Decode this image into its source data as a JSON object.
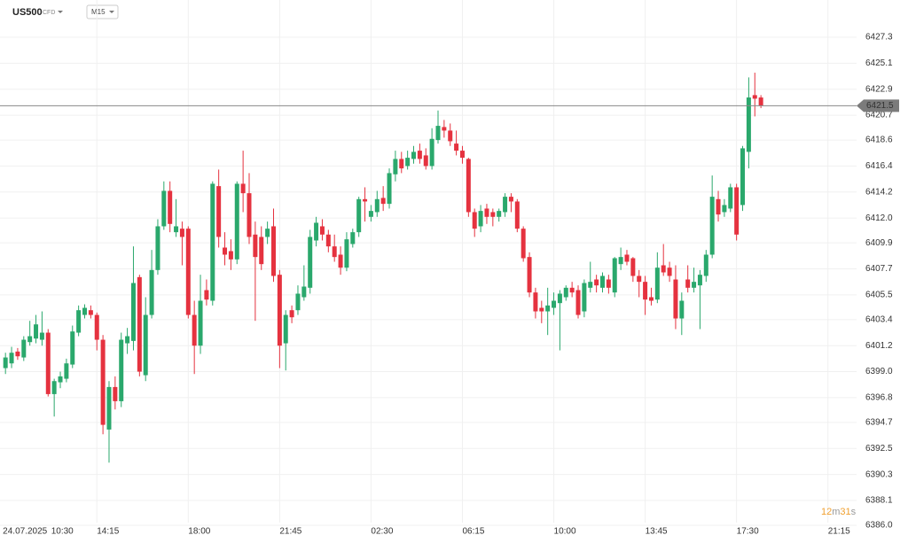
{
  "chart_data": {
    "type": "candlestick",
    "symbol": "US500",
    "instrument": "CFD",
    "timeframe": "M15",
    "countdown": [
      "12",
      "m",
      "31",
      "s"
    ],
    "up_color": "#2aa86c",
    "down_color": "#e5323f",
    "grid": true,
    "last_price": 6421.5,
    "xlim": [
      -0.9,
      139.7
    ],
    "xticks": [
      {
        "value": 0,
        "label": "24.07.2025"
      },
      {
        "value": 7.5,
        "label": "10:30"
      },
      {
        "value": 15,
        "label": "14:15"
      },
      {
        "value": 30,
        "label": "18:00"
      },
      {
        "value": 45,
        "label": "21:45"
      },
      {
        "value": 60,
        "label": "02:30"
      },
      {
        "value": 75,
        "label": "06:15"
      },
      {
        "value": 90,
        "label": "10:00"
      },
      {
        "value": 105,
        "label": "13:45"
      },
      {
        "value": 120,
        "label": "17:30"
      },
      {
        "value": 135,
        "label": "21:15"
      }
    ],
    "ylim": [
      6384.5,
      6430.45
    ],
    "yticks": [
      6427.3,
      6425.1,
      6422.9,
      6420.7,
      6418.6,
      6416.4,
      6414.2,
      {
        "value": 6412,
        "label": "6412.0"
      },
      6409.9,
      6407.7,
      6405.5,
      6403.4,
      6401.2,
      {
        "value": 6399,
        "label": "6399.0"
      },
      6396.8,
      6394.7,
      6392.5,
      6390.3,
      6388.1,
      {
        "value": 6386,
        "label": "6386.0"
      }
    ],
    "open": [
      6399.3,
      6399.7,
      6400.7,
      6400.2,
      6401.5,
      6401.8,
      6401.7,
      6402.3,
      6397.1,
      6398.1,
      6398.4,
      6399.6,
      6402.3,
      6403.8,
      6404.2,
      6403.8,
      6401.7,
      6394.1,
      6397.7,
      6396.5,
      6401.4,
      6401.6,
      6407.0,
      6398.7,
      6403.8,
      6407.6,
      6411.3,
      6414.3,
      6410.8,
      6411.1,
      6411.1,
      6403.8,
      6401.2,
      6405.9,
      6405.0,
      6414.7,
      6409.5,
      6409.2,
      6408.5,
      6414.9,
      6414.1,
      6410.6,
      6410.4,
      6410.4,
      6411.3,
      6407.2,
      6401.4,
      6404.2,
      6404.2,
      6405.3,
      6406.1,
      6410.1,
      6411.3,
      6410.6,
      6409.6,
      6408.9,
      6407.8,
      6409.8,
      6410.8,
      6413.6,
      6412.1,
      6412.5,
      6413.7,
      6413.2,
      6415.7,
      6417.0,
      6416.4,
      6417.0,
      6417.7,
      6417.3,
      6416.4,
      6418.6,
      6419.7,
      6419.4,
      6418.3,
      6417.7,
      6417.0,
      6412.5,
      6411.3,
      6412.8,
      6412.5,
      6412.1,
      6412.5,
      6413.8,
      6413.4,
      6411.1,
      6408.7,
      6405.7,
      6404.4,
      6404.1,
      6404.4,
      6404.8,
      6405.3,
      6406.1,
      6405.9,
      6404.1,
      6406.1,
      6406.8,
      6406.1,
      6406.8,
      6405.7,
      6408.1,
      6408.9,
      6408.6,
      6407.1,
      6406.6,
      6405.3,
      6405.1,
      6408.0,
      6407.8,
      6406.8,
      6403.5,
      6406.8,
      6406.1,
      6406.3,
      6407.1,
      6408.9,
      6413.6,
      6412.5,
      6412.8,
      6414.6,
      6413.1,
      6417.6,
      6422.4,
      6422.2
    ],
    "high": [
      6400.6,
      6401.1,
      6401.0,
      6402.0,
      6403.3,
      6403.8,
      6404.1,
      6402.6,
      6398.4,
      6399.0,
      6400.1,
      6402.9,
      6404.6,
      6404.7,
      6404.6,
      6404.0,
      6402.1,
      6398.2,
      6398.6,
      6402.3,
      6402.7,
      6409.6,
      6407.2,
      6405.3,
      6409.3,
      6411.9,
      6415.1,
      6415.1,
      6413.6,
      6411.7,
      6411.3,
      6405.0,
      6407.2,
      6406.8,
      6415.1,
      6416.1,
      6410.8,
      6410.2,
      6415.1,
      6417.7,
      6415.8,
      6411.7,
      6411.3,
      6411.7,
      6412.8,
      6407.6,
      6404.2,
      6404.6,
      6406.3,
      6408.0,
      6411.0,
      6412.1,
      6411.9,
      6411.0,
      6410.6,
      6409.6,
      6410.8,
      6411.1,
      6413.8,
      6414.6,
      6413.1,
      6414.3,
      6414.7,
      6416.2,
      6417.7,
      6417.6,
      6417.7,
      6418.1,
      6418.3,
      6417.9,
      6419.6,
      6421.1,
      6420.3,
      6420.0,
      6419.4,
      6418.1,
      6417.1,
      6412.8,
      6413.1,
      6413.2,
      6412.8,
      6412.8,
      6414.1,
      6414.1,
      6413.6,
      6411.3,
      6409.1,
      6406.1,
      6405.0,
      6406.1,
      6405.7,
      6405.9,
      6406.3,
      6406.6,
      6406.3,
      6406.8,
      6408.3,
      6407.2,
      6407.4,
      6407.2,
      6408.7,
      6409.5,
      6409.3,
      6408.7,
      6407.6,
      6407.1,
      6406.1,
      6409.1,
      6409.8,
      6408.3,
      6408.0,
      6405.7,
      6408.0,
      6407.8,
      6407.6,
      6409.3,
      6415.6,
      6414.3,
      6413.6,
      6414.9,
      6414.9,
      6418.1,
      6423.9,
      6424.3,
      6422.4
    ],
    "low": [
      6398.8,
      6399.3,
      6400.0,
      6399.9,
      6401.2,
      6401.4,
      6401.2,
      6396.9,
      6395.2,
      6397.6,
      6398.1,
      6399.3,
      6402.0,
      6403.5,
      6403.5,
      6400.8,
      6393.7,
      6391.3,
      6395.8,
      6396.0,
      6400.5,
      6400.8,
      6398.6,
      6398.2,
      6403.5,
      6407.2,
      6411.0,
      6410.8,
      6410.4,
      6408.0,
      6403.5,
      6398.8,
      6400.5,
      6404.6,
      6404.6,
      6409.5,
      6408.0,
      6407.6,
      6408.1,
      6412.5,
      6409.8,
      6403.3,
      6407.6,
      6409.8,
      6406.6,
      6399.3,
      6399.1,
      6403.1,
      6403.8,
      6405.0,
      6405.6,
      6409.6,
      6410.1,
      6409.1,
      6408.3,
      6407.2,
      6407.5,
      6409.5,
      6410.4,
      6411.7,
      6411.7,
      6412.1,
      6412.6,
      6412.8,
      6415.1,
      6415.8,
      6416.1,
      6416.6,
      6416.6,
      6416.1,
      6416.1,
      6418.3,
      6418.8,
      6418.1,
      6417.3,
      6416.6,
      6412.1,
      6410.4,
      6410.8,
      6411.5,
      6411.3,
      6411.7,
      6412.1,
      6412.5,
      6410.8,
      6408.3,
      6405.3,
      6403.5,
      6403.1,
      6402.1,
      6403.8,
      6400.8,
      6405.0,
      6405.3,
      6403.5,
      6403.6,
      6405.7,
      6405.7,
      6405.7,
      6405.6,
      6405.3,
      6407.6,
      6408.0,
      6406.6,
      6405.3,
      6403.8,
      6404.6,
      6404.8,
      6407.1,
      6406.6,
      6402.6,
      6402.1,
      6405.7,
      6405.7,
      6402.6,
      6406.6,
      6408.6,
      6411.7,
      6412.1,
      6412.5,
      6410.1,
      6412.6,
      6416.2,
      6420.6,
      6421.3
    ],
    "close": [
      6400.2,
      6400.6,
      6400.3,
      6401.7,
      6402.0,
      6403.0,
      6402.3,
      6397.1,
      6398.2,
      6398.6,
      6399.7,
      6402.4,
      6404.2,
      6404.4,
      6403.8,
      6401.7,
      6394.5,
      6397.7,
      6396.5,
      6401.7,
      6402.0,
      6406.5,
      6399.0,
      6403.8,
      6407.6,
      6411.3,
      6414.3,
      6411.5,
      6411.3,
      6410.4,
      6403.8,
      6401.2,
      6405.0,
      6405.1,
      6414.9,
      6410.4,
      6408.9,
      6408.5,
      6414.9,
      6414.1,
      6410.4,
      6408.7,
      6408.1,
      6411.1,
      6407.1,
      6401.2,
      6403.8,
      6403.6,
      6405.6,
      6406.2,
      6410.4,
      6411.6,
      6410.6,
      6409.6,
      6408.7,
      6407.8,
      6410.2,
      6410.8,
      6413.6,
      6413.4,
      6412.6,
      6413.6,
      6413.2,
      6415.8,
      6417.0,
      6416.2,
      6417.1,
      6417.6,
      6417.0,
      6416.4,
      6418.7,
      6419.8,
      6419.4,
      6418.5,
      6417.7,
      6417.1,
      6412.5,
      6411.1,
      6412.6,
      6412.1,
      6412.1,
      6412.6,
      6413.8,
      6413.4,
      6411.1,
      6408.6,
      6405.7,
      6404.1,
      6404.1,
      6404.6,
      6405.0,
      6405.6,
      6406.1,
      6405.7,
      6403.8,
      6406.5,
      6406.6,
      6406.3,
      6407.1,
      6406.1,
      6408.6,
      6408.7,
      6408.3,
      6407.1,
      6406.6,
      6405.1,
      6405.0,
      6407.8,
      6407.4,
      6407.1,
      6403.5,
      6405.0,
      6406.1,
      6406.6,
      6407.2,
      6408.9,
      6413.8,
      6412.3,
      6413.1,
      6414.6,
      6410.6,
      6417.9,
      6422.2,
      6422.1,
      6421.5
    ]
  }
}
